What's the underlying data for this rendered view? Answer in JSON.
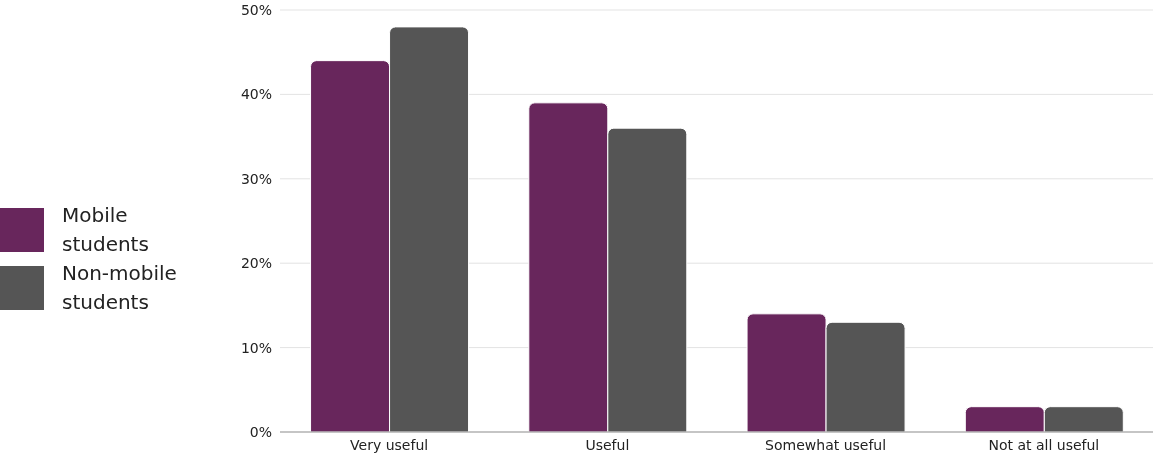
{
  "chart_data": {
    "type": "bar",
    "categories": [
      "Very useful",
      "Useful",
      "Somewhat useful",
      "Not at all useful"
    ],
    "series": [
      {
        "name": "Mobile students",
        "color": "#68265c",
        "values": [
          44,
          39,
          14,
          3
        ]
      },
      {
        "name": "Non-mobile students",
        "color": "#555555",
        "values": [
          48,
          36,
          13,
          3
        ]
      }
    ],
    "ylim": [
      0,
      50
    ],
    "yticks": [
      {
        "value": 0,
        "label": "0%"
      },
      {
        "value": 10,
        "label": "10%"
      },
      {
        "value": 20,
        "label": "20%"
      },
      {
        "value": 30,
        "label": "30%"
      },
      {
        "value": 40,
        "label": "40%"
      },
      {
        "value": 50,
        "label": "50%"
      }
    ],
    "grid": "y",
    "legend": "left"
  }
}
